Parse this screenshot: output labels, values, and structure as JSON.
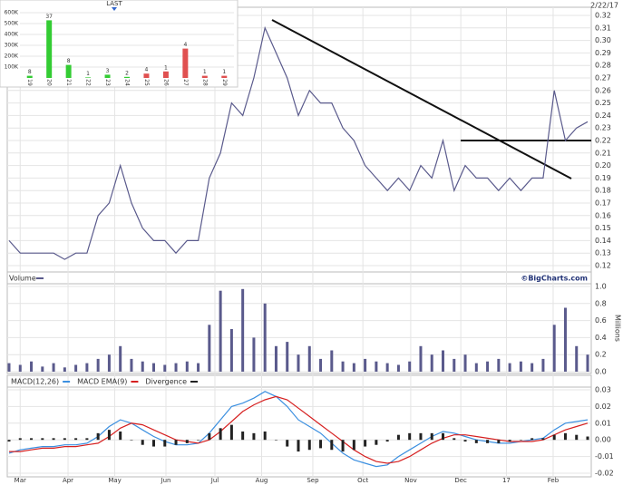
{
  "chart_data": [
    {
      "type": "line",
      "date": "2/22/17",
      "x": [
        0,
        1,
        2,
        3,
        4,
        5,
        6,
        7,
        8,
        9,
        10,
        11,
        12,
        13,
        14,
        15,
        16,
        17,
        18,
        19,
        20,
        21,
        22,
        23,
        24,
        25,
        26,
        27,
        28,
        29,
        30,
        31,
        32,
        33,
        34,
        35,
        36,
        37,
        38,
        39,
        40,
        41,
        42,
        43,
        44,
        45,
        46,
        47,
        48,
        49,
        50,
        51,
        52
      ],
      "series": [
        {
          "color": "#5a5a8c",
          "values": [
            0.14,
            0.13,
            0.13,
            0.13,
            0.13,
            0.125,
            0.13,
            0.13,
            0.16,
            0.17,
            0.2,
            0.17,
            0.15,
            0.14,
            0.14,
            0.13,
            0.14,
            0.14,
            0.19,
            0.21,
            0.25,
            0.24,
            0.27,
            0.31,
            0.29,
            0.27,
            0.24,
            0.26,
            0.25,
            0.25,
            0.23,
            0.22,
            0.2,
            0.19,
            0.18,
            0.19,
            0.18,
            0.2,
            0.19,
            0.22,
            0.18,
            0.2,
            0.19,
            0.19,
            0.18,
            0.19,
            0.18,
            0.19,
            0.19,
            0.26,
            0.22,
            0.23,
            0.235
          ]
        }
      ],
      "xlim": [
        0,
        52
      ],
      "ylim": [
        0.12,
        0.32
      ],
      "yticks": [
        0.12,
        0.13,
        0.14,
        0.15,
        0.16,
        0.17,
        0.18,
        0.19,
        {
          "value": 0.2,
          "label": "0.20"
        },
        0.21,
        0.22,
        0.23,
        0.24,
        0.25,
        0.26,
        0.27,
        0.28,
        0.29,
        {
          "value": 0.3,
          "label": "0.30"
        },
        0.31,
        0.32
      ],
      "grid": true
    },
    {
      "type": "bar",
      "title": "Volume",
      "credit": "©BigCharts.com",
      "y_label": "Millions",
      "color": "#5a5a8c",
      "x": [
        0,
        1,
        2,
        3,
        4,
        5,
        6,
        7,
        8,
        9,
        10,
        11,
        12,
        13,
        14,
        15,
        16,
        17,
        18,
        19,
        20,
        21,
        22,
        23,
        24,
        25,
        26,
        27,
        28,
        29,
        30,
        31,
        32,
        33,
        34,
        35,
        36,
        37,
        38,
        39,
        40,
        41,
        42,
        43,
        44,
        45,
        46,
        47,
        48,
        49,
        50,
        51,
        52
      ],
      "values": [
        0.1,
        0.08,
        0.12,
        0.06,
        0.1,
        0.05,
        0.08,
        0.1,
        0.15,
        0.2,
        0.3,
        0.15,
        0.12,
        0.1,
        0.08,
        0.1,
        0.12,
        0.1,
        0.55,
        0.95,
        0.5,
        0.97,
        0.4,
        0.8,
        0.3,
        0.35,
        0.2,
        0.3,
        0.15,
        0.25,
        0.12,
        0.1,
        0.15,
        0.12,
        0.1,
        0.08,
        0.12,
        0.3,
        0.2,
        0.25,
        0.15,
        0.2,
        0.1,
        0.12,
        0.15,
        0.1,
        0.12,
        0.1,
        0.15,
        0.55,
        0.75,
        0.3,
        0.2
      ],
      "xlim": [
        0,
        52
      ],
      "ylim": [
        0,
        1
      ],
      "yticks": [
        {
          "value": 0,
          "label": "0.0"
        },
        0.2,
        0.4,
        0.6,
        0.8,
        {
          "value": 1,
          "label": "1.0"
        }
      ],
      "grid": true
    },
    {
      "type": "line",
      "x": [
        0,
        1,
        2,
        3,
        4,
        5,
        6,
        7,
        8,
        9,
        10,
        11,
        12,
        13,
        14,
        15,
        16,
        17,
        18,
        19,
        20,
        21,
        22,
        23,
        24,
        25,
        26,
        27,
        28,
        29,
        30,
        31,
        32,
        33,
        34,
        35,
        36,
        37,
        38,
        39,
        40,
        41,
        42,
        43,
        44,
        45,
        46,
        47,
        48,
        49,
        50,
        51,
        52
      ],
      "series": [
        {
          "name": "MACD(12,26)",
          "color": "#3b8fe0",
          "values": [
            -0.008,
            -0.006,
            -0.005,
            -0.004,
            -0.004,
            -0.003,
            -0.003,
            -0.002,
            0.002,
            0.008,
            0.012,
            0.01,
            0.006,
            0.002,
            -0.001,
            -0.003,
            -0.003,
            -0.002,
            0.004,
            0.012,
            0.02,
            0.022,
            0.025,
            0.029,
            0.026,
            0.02,
            0.012,
            0.008,
            0.004,
            -0.002,
            -0.008,
            -0.012,
            -0.014,
            -0.016,
            -0.015,
            -0.01,
            -0.006,
            -0.002,
            0.002,
            0.005,
            0.004,
            0.002,
            0,
            -0.001,
            -0.002,
            -0.002,
            -0.001,
            0,
            0.001,
            0.006,
            0.01,
            0.011,
            0.012
          ]
        },
        {
          "name": "MACD EMA(9)",
          "color": "#d62020",
          "values": [
            -0.007,
            -0.007,
            -0.006,
            -0.005,
            -0.005,
            -0.004,
            -0.004,
            -0.003,
            -0.002,
            0.002,
            0.007,
            0.01,
            0.009,
            0.006,
            0.003,
            0,
            -0.001,
            -0.002,
            0,
            0.005,
            0.011,
            0.017,
            0.021,
            0.024,
            0.026,
            0.024,
            0.019,
            0.014,
            0.009,
            0.004,
            -0.001,
            -0.006,
            -0.01,
            -0.013,
            -0.014,
            -0.013,
            -0.01,
            -0.006,
            -0.002,
            0.001,
            0.003,
            0.003,
            0.002,
            0.001,
            0,
            -0.001,
            -0.001,
            -0.001,
            0,
            0.003,
            0.006,
            0.008,
            0.01
          ]
        },
        {
          "name": "Divergence",
          "color": "#222222",
          "type": "bar",
          "values": [
            -0.001,
            0.001,
            0.001,
            0.001,
            0.001,
            0.001,
            0.001,
            0.001,
            0.004,
            0.006,
            0.005,
            0,
            -0.003,
            -0.004,
            -0.004,
            -0.003,
            -0.002,
            0,
            0.004,
            0.007,
            0.009,
            0.005,
            0.004,
            0.005,
            0,
            -0.004,
            -0.007,
            -0.006,
            -0.005,
            -0.006,
            -0.007,
            -0.006,
            -0.004,
            -0.003,
            -0.001,
            0.003,
            0.004,
            0.004,
            0.004,
            0.004,
            0.001,
            -0.001,
            -0.002,
            -0.002,
            -0.002,
            -0.001,
            0,
            0.001,
            0.001,
            0.003,
            0.004,
            0.003,
            0.002
          ]
        }
      ],
      "xlim": [
        0,
        52
      ],
      "ylim": [
        -0.02,
        0.03
      ],
      "yticks": [
        -0.02,
        -0.01,
        {
          "value": 0,
          "label": "0.00"
        },
        0.01,
        0.02,
        0.03
      ],
      "xticks": [
        {
          "value": 1,
          "label": "Mar"
        },
        {
          "value": 5.3,
          "label": "Apr"
        },
        {
          "value": 9.5,
          "label": "May"
        },
        {
          "value": 14.1,
          "label": "Jun"
        },
        {
          "value": 18.5,
          "label": "Jul"
        },
        {
          "value": 22.7,
          "label": "Aug"
        },
        {
          "value": 27.3,
          "label": "Sep"
        },
        {
          "value": 31.8,
          "label": "Oct"
        },
        {
          "value": 36.1,
          "label": "Nov"
        },
        {
          "value": 40.6,
          "label": "Dec"
        },
        {
          "value": 44.7,
          "label": "17"
        },
        {
          "value": 48.9,
          "label": "Feb"
        }
      ],
      "grid": true
    },
    {
      "type": "bar",
      "title": "LAST",
      "categories": [
        "19",
        "20",
        "21",
        "22",
        "23",
        "24",
        "25",
        "26",
        "27",
        "28",
        "29"
      ],
      "values": [
        20000,
        530000,
        120000,
        5000,
        30000,
        10000,
        40000,
        60000,
        270000,
        20000,
        20000
      ],
      "counts": [
        "8",
        "37",
        "8",
        "1",
        "3",
        "2",
        "4",
        "1",
        "4",
        "1",
        "1"
      ],
      "colors": [
        "#33cc33",
        "#33cc33",
        "#33cc33",
        "#33cc33",
        "#33cc33",
        "#33cc33",
        "#e05050",
        "#e05050",
        "#e05050",
        "#e05050",
        "#e05050"
      ],
      "ylim": [
        0,
        600000
      ],
      "yticks": [
        {
          "value": 100000,
          "label": "100K"
        },
        {
          "value": 200000,
          "label": "200K"
        },
        {
          "value": 300000,
          "label": "300K"
        },
        {
          "value": 400000,
          "label": "400K"
        },
        {
          "value": 500000,
          "label": "500K"
        },
        {
          "value": 600000,
          "label": "600K"
        }
      ]
    }
  ]
}
